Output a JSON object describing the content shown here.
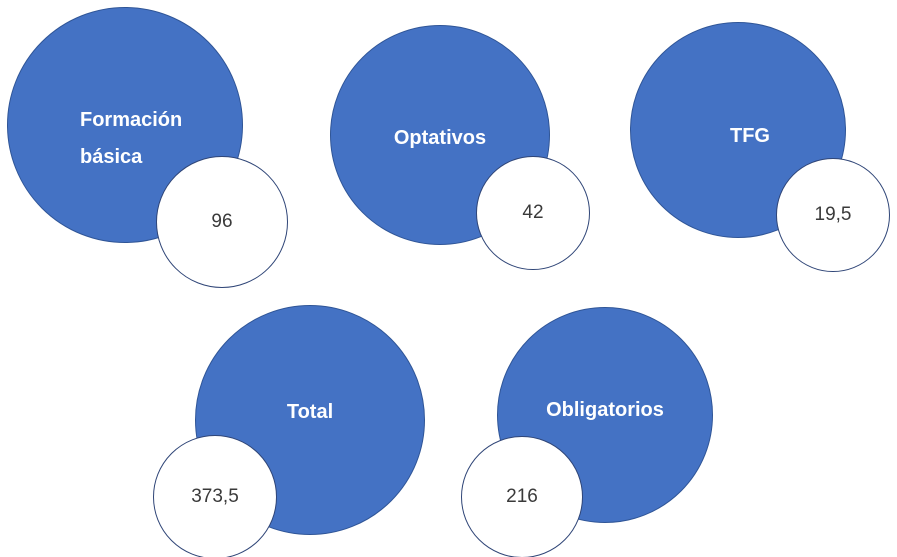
{
  "nodes": [
    {
      "label": "Formación básica",
      "value": "96"
    },
    {
      "label": "Optativos",
      "value": "42"
    },
    {
      "label": "TFG",
      "value": "19,5"
    },
    {
      "label": "Total",
      "value": "373,5"
    },
    {
      "label": "Obligatorios",
      "value": "216"
    }
  ]
}
